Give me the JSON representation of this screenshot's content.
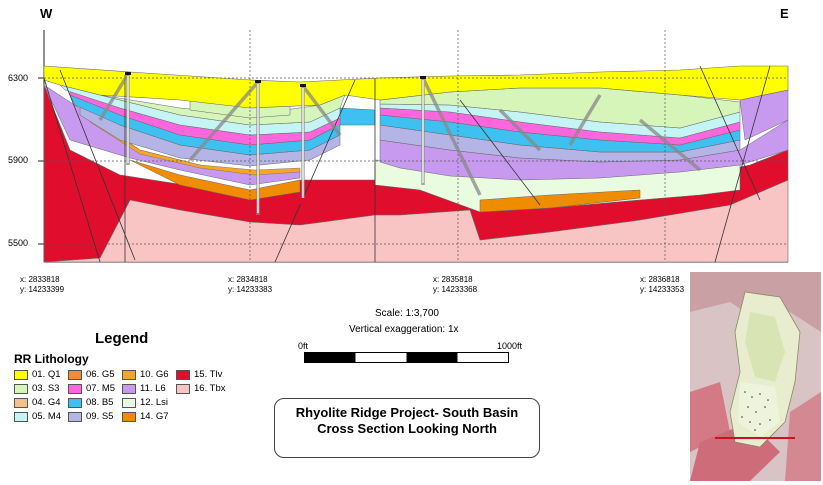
{
  "directions": {
    "west": "W",
    "east": "E"
  },
  "elevation_labels": [
    "6300",
    "5900",
    "5500"
  ],
  "coordinates": [
    {
      "x": "x: 2833818",
      "y": "y: 14233399"
    },
    {
      "x": "x: 2834818",
      "y": "y: 14233383"
    },
    {
      "x": "x: 2835818",
      "y": "y: 14233368"
    },
    {
      "x": "x: 2836818",
      "y": "y: 14233353"
    }
  ],
  "scale": {
    "ratio": "Scale: 1:3,700",
    "exaggeration": "Vertical exaggeration: 1x",
    "start": "0ft",
    "end": "1000ft"
  },
  "legend": {
    "title": "Legend",
    "subtitle": "RR Lithology",
    "items": [
      {
        "label": "01. Q1",
        "color": "#ffff00"
      },
      {
        "label": "03. S3",
        "color": "#d6f5b8"
      },
      {
        "label": "04. G4",
        "color": "#f5c08a"
      },
      {
        "label": "05. M4",
        "color": "#c4f4f4"
      },
      {
        "label": "06. G5",
        "color": "#f08a3c"
      },
      {
        "label": "07. M5",
        "color": "#ff66dd"
      },
      {
        "label": "08. B5",
        "color": "#3ec0f0"
      },
      {
        "label": "09. S5",
        "color": "#b4b4e6"
      },
      {
        "label": "10. G6",
        "color": "#f5a623"
      },
      {
        "label": "11. L6",
        "color": "#c79af0"
      },
      {
        "label": "12. Lsi",
        "color": "#eafce0"
      },
      {
        "label": "14. G7",
        "color": "#f08c00"
      },
      {
        "label": "15. Tlv",
        "color": "#e00e2c"
      },
      {
        "label": "16. Tbx",
        "color": "#f8c4c4"
      }
    ]
  },
  "title": {
    "line1": "Rhyolite Ridge Project- South Basin",
    "line2": "Cross Section Looking North"
  }
}
